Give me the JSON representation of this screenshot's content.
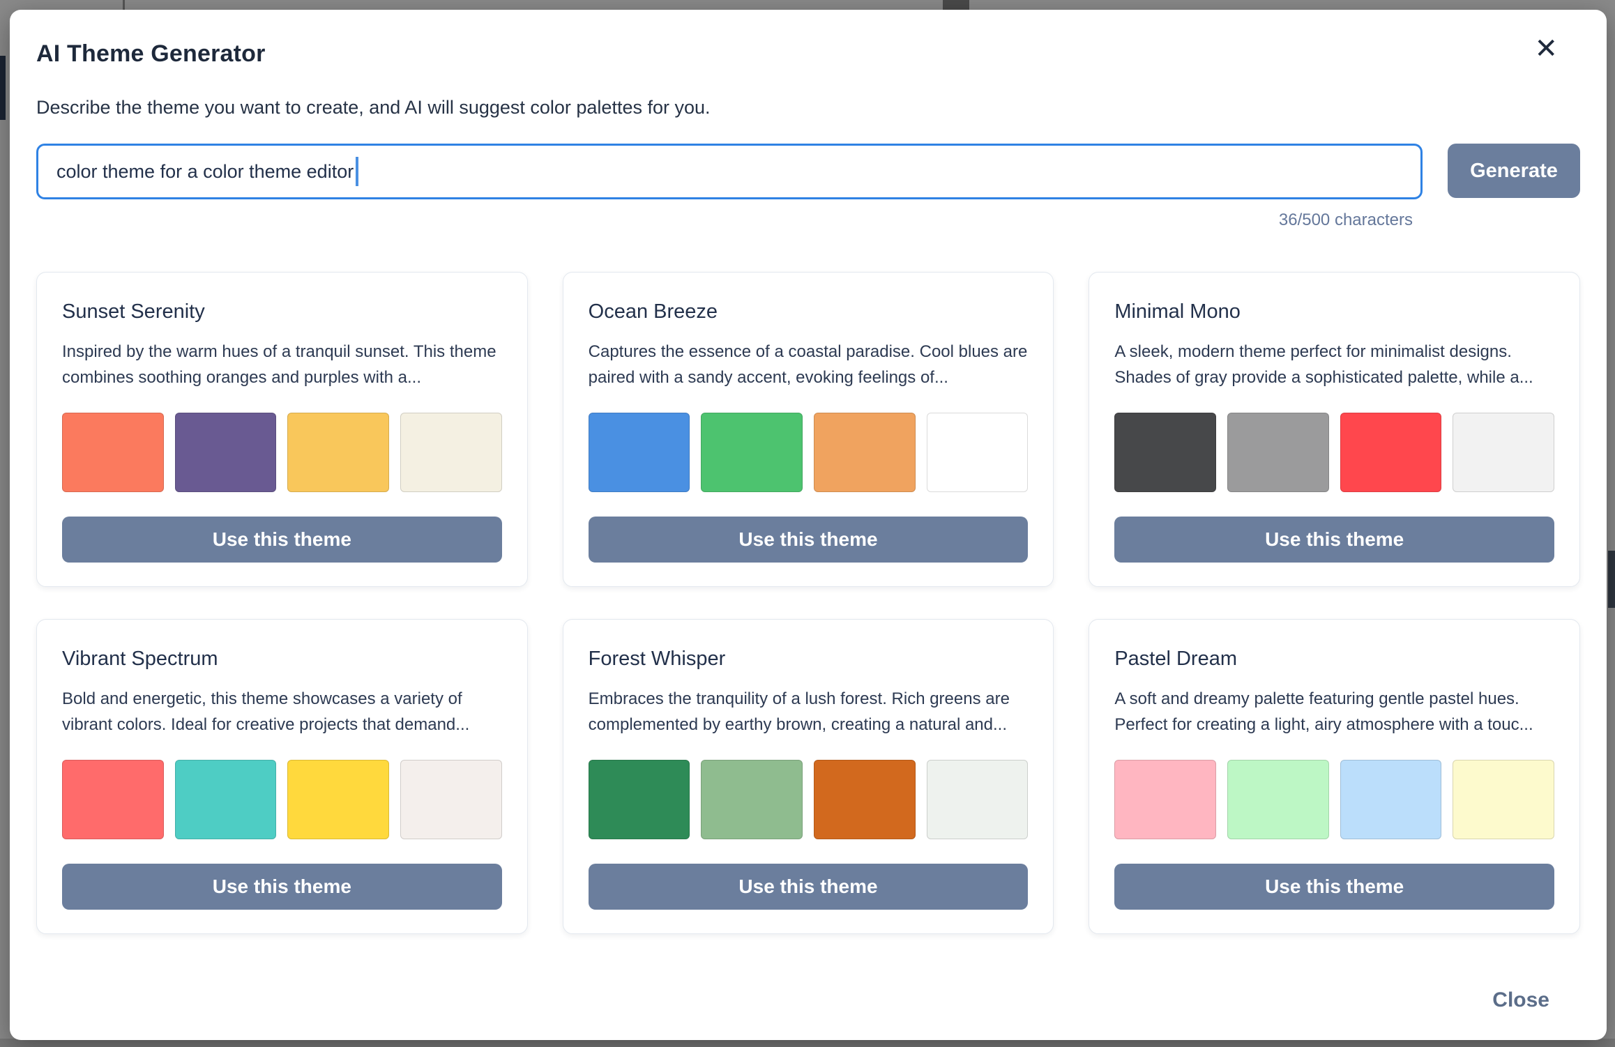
{
  "modal": {
    "title": "AI Theme Generator",
    "close_icon": "✕",
    "description": "Describe the theme you want to create, and AI will suggest color palettes for you.",
    "input_value": "color theme for a color theme editor",
    "generate_label": "Generate",
    "char_counter": "36/500 characters",
    "use_theme_label": "Use this theme",
    "close_label": "Close"
  },
  "ui_colors": {
    "accent-blue": "#2F82E4",
    "button-bg": "#6B7E9D",
    "counter-text": "#64779A",
    "close-text": "#5B6D89",
    "backdrop": "#8A8A8A"
  },
  "themes": [
    {
      "name": "Sunset Serenity",
      "description": "Inspired by the warm hues of a tranquil sunset. This theme combines soothing oranges and purples with a...",
      "swatches": [
        "#FB7A5E",
        "#695A92",
        "#F9C75B",
        "#F4F0E2"
      ]
    },
    {
      "name": "Ocean Breeze",
      "description": "Captures the essence of a coastal paradise. Cool blues are paired with a sandy accent, evoking feelings of...",
      "swatches": [
        "#4A90E2",
        "#4DC36F",
        "#F0A35F",
        "#FFFFFF"
      ]
    },
    {
      "name": "Minimal Mono",
      "description": "A sleek, modern theme perfect for minimalist designs. Shades of gray provide a sophisticated palette, while a...",
      "swatches": [
        "#47484A",
        "#9B9B9C",
        "#FF474D",
        "#F2F2F2"
      ]
    },
    {
      "name": "Vibrant Spectrum",
      "description": "Bold and energetic, this theme showcases a variety of vibrant colors. Ideal for creative projects that demand...",
      "swatches": [
        "#FF6B6B",
        "#4ECDC4",
        "#FFD93D",
        "#F4EFEC"
      ]
    },
    {
      "name": "Forest Whisper",
      "description": "Embraces the tranquility of a lush forest. Rich greens are complemented by earthy brown, creating a natural and...",
      "swatches": [
        "#2E8B57",
        "#8FBC8F",
        "#D2691E",
        "#EEF2EE"
      ]
    },
    {
      "name": "Pastel Dream",
      "description": "A soft and dreamy palette featuring gentle pastel hues. Perfect for creating a light, airy atmosphere with a touc...",
      "swatches": [
        "#FFB6C1",
        "#BDF7C5",
        "#BBDEFB",
        "#FDFACD"
      ]
    }
  ]
}
